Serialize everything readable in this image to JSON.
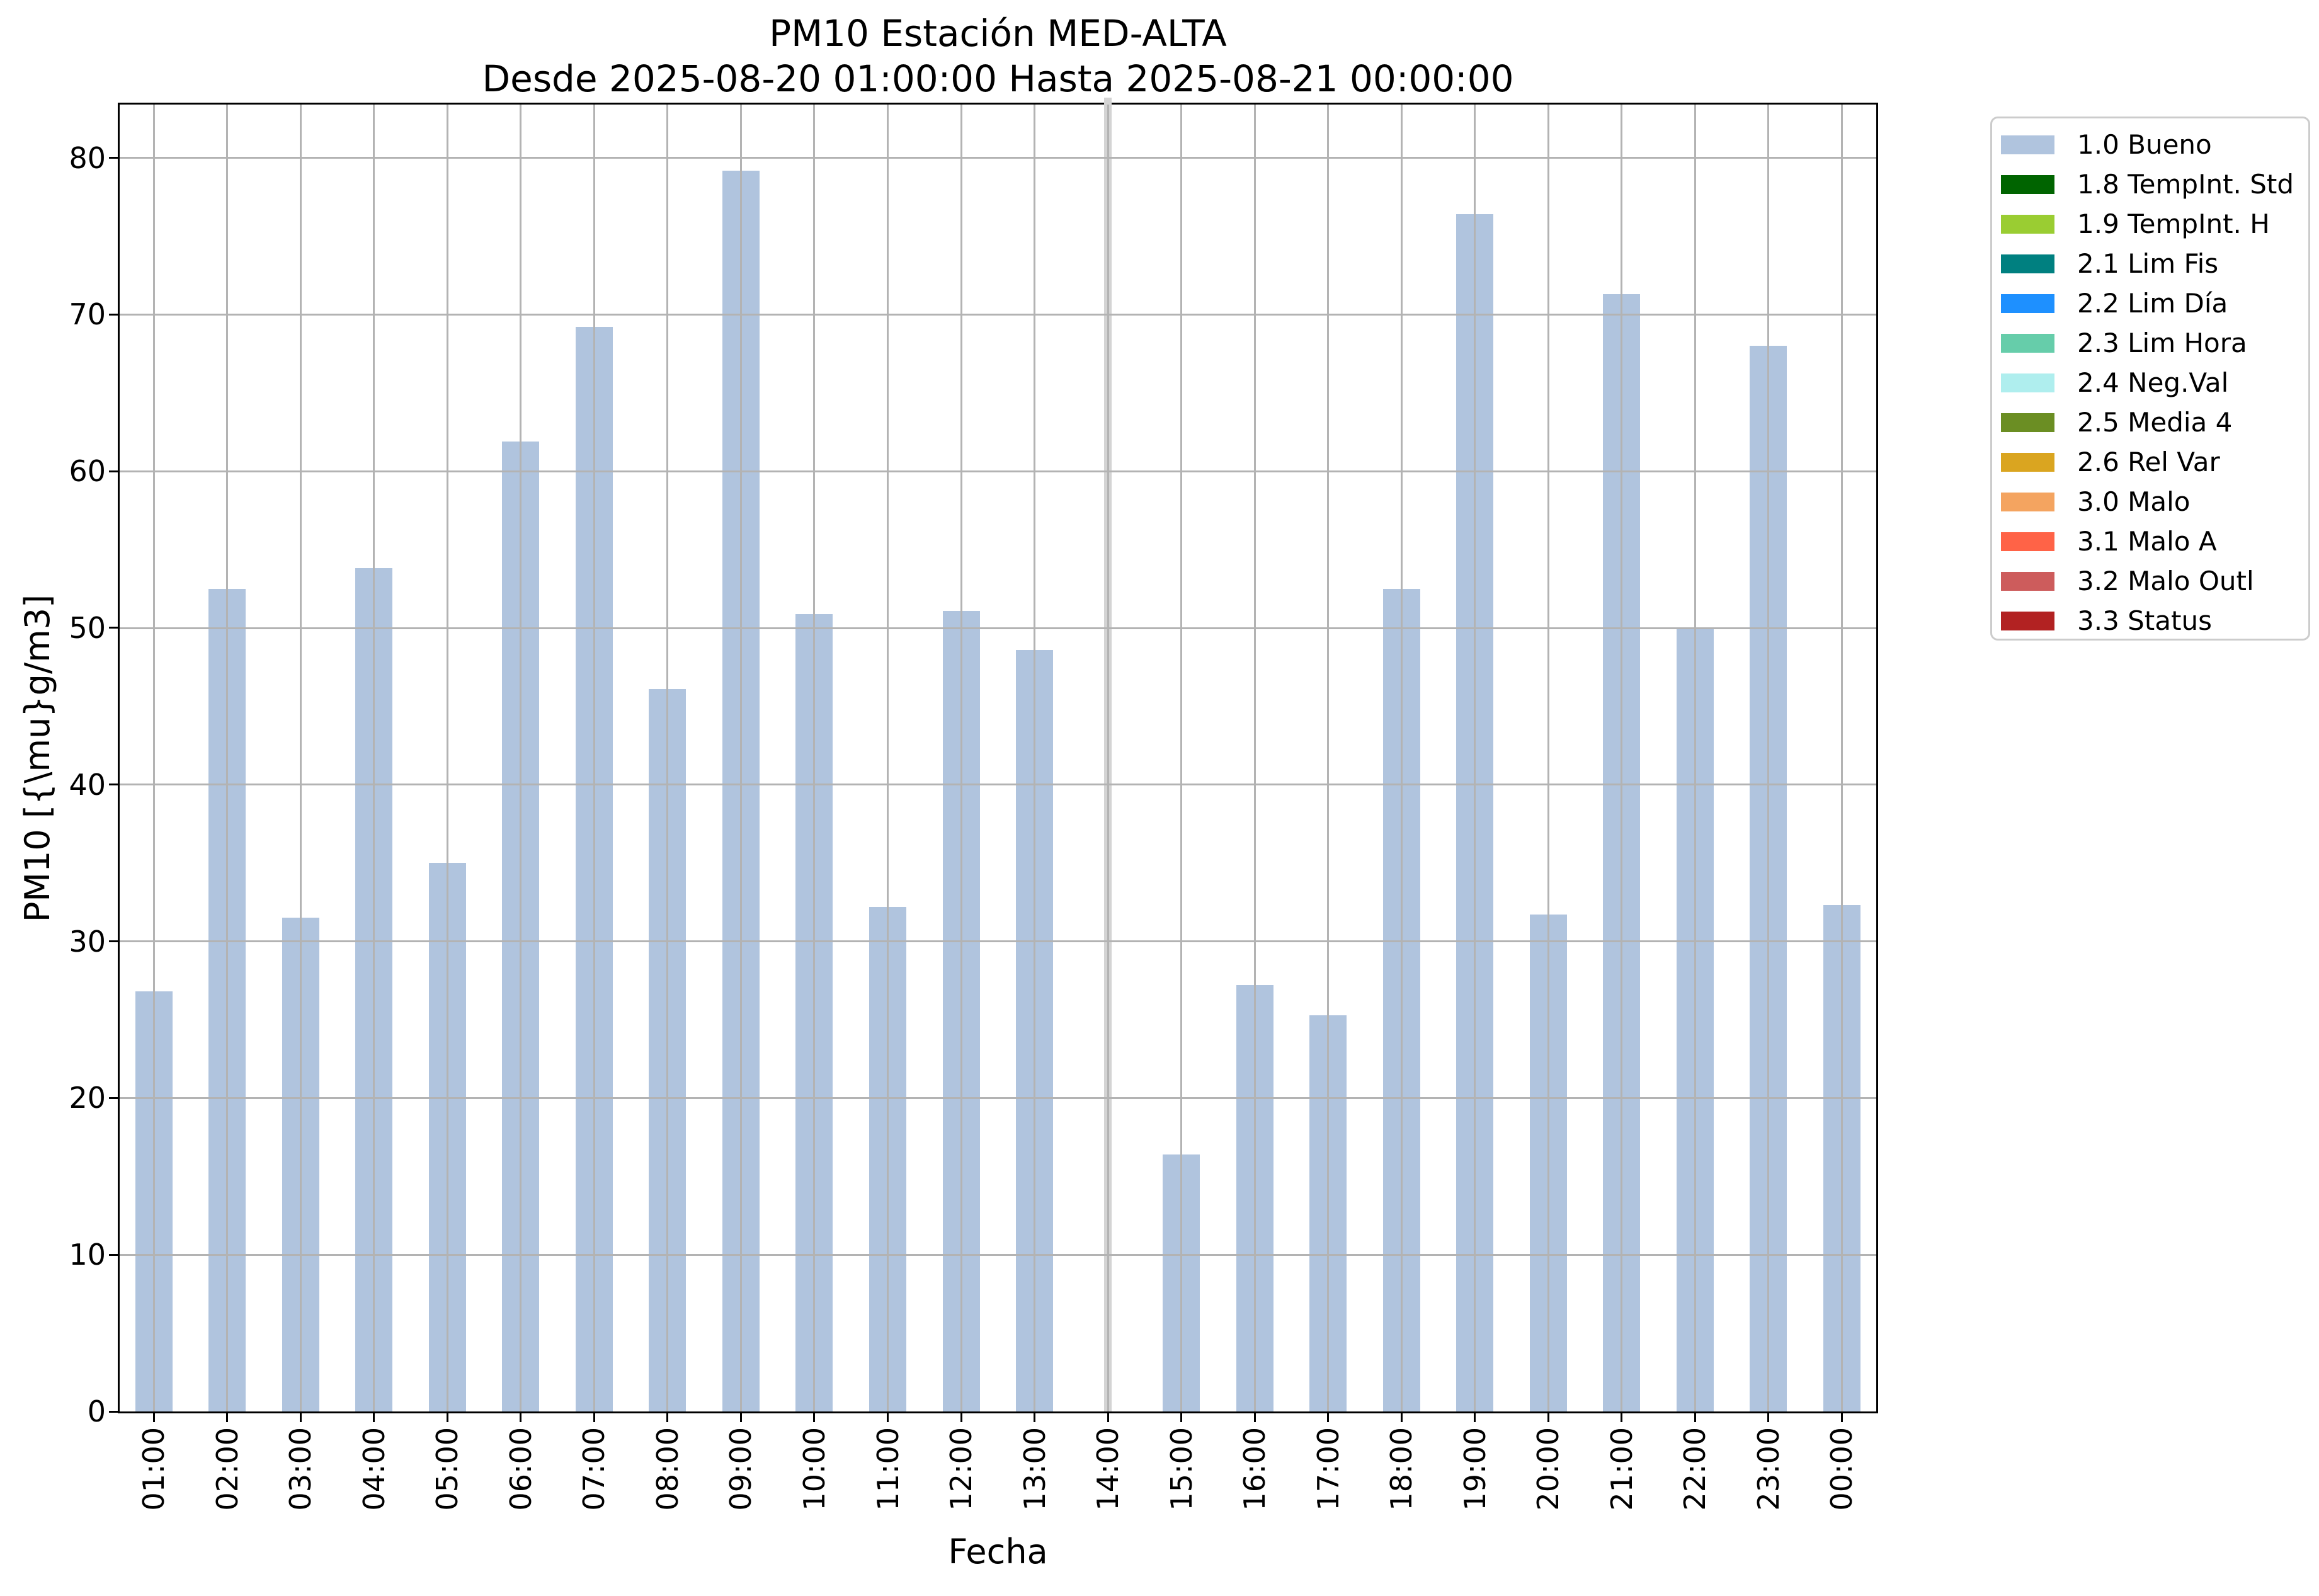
{
  "title": "PM10 Estación MED-ALTA",
  "subtitle": "Desde 2025-08-20 01:00:00 Hasta 2025-08-21 00:00:00",
  "chart_data": {
    "type": "bar",
    "title": "PM10 Estación MED-ALTA",
    "subtitle": "Desde 2025-08-20 01:00:00 Hasta 2025-08-21 00:00:00",
    "xlabel": "Fecha",
    "ylabel": "PM10 [{\\mu}g/m3]",
    "ylim": [
      0,
      83.4
    ],
    "yticks": [
      0,
      10,
      20,
      30,
      40,
      50,
      60,
      70,
      80
    ],
    "grid": true,
    "grid_color": "#b3b3b3",
    "bar_color": "#b0c4de",
    "categories": [
      "01:00",
      "02:00",
      "03:00",
      "04:00",
      "05:00",
      "06:00",
      "07:00",
      "08:00",
      "09:00",
      "10:00",
      "11:00",
      "12:00",
      "13:00",
      "14:00",
      "15:00",
      "16:00",
      "17:00",
      "18:00",
      "19:00",
      "20:00",
      "21:00",
      "22:00",
      "23:00",
      "00:00"
    ],
    "series": [
      {
        "name": "1.0 Bueno",
        "values": [
          26.8,
          52.5,
          31.5,
          53.8,
          35.0,
          61.9,
          69.2,
          46.1,
          79.2,
          50.9,
          32.2,
          51.1,
          48.6,
          null,
          16.4,
          27.2,
          25.3,
          52.5,
          76.4,
          31.7,
          71.3,
          49.9,
          68.0,
          32.3
        ]
      }
    ],
    "no_data": {
      "category": "14:00",
      "marker_color": "#d4d4d4"
    },
    "legend": {
      "position": "outside upper right",
      "entries": [
        {
          "label": "1.0 Bueno",
          "color": "#b0c4de"
        },
        {
          "label": "1.8 TempInt. Std",
          "color": "#006400"
        },
        {
          "label": "1.9 TempInt. H",
          "color": "#9acd32"
        },
        {
          "label": "2.1 Lim Fis",
          "color": "#008080"
        },
        {
          "label": "2.2 Lim Día",
          "color": "#1e90ff"
        },
        {
          "label": "2.3 Lim Hora",
          "color": "#66cdaa"
        },
        {
          "label": "2.4 Neg.Val",
          "color": "#afeeee"
        },
        {
          "label": "2.5 Media 4",
          "color": "#6b8e23"
        },
        {
          "label": "2.6 Rel Var",
          "color": "#daa520"
        },
        {
          "label": "3.0 Malo",
          "color": "#f4a460"
        },
        {
          "label": "3.1 Malo A",
          "color": "#ff6347"
        },
        {
          "label": "3.2 Malo Outl",
          "color": "#cd5c5c"
        },
        {
          "label": "3.3 Status",
          "color": "#b22222"
        }
      ]
    }
  }
}
